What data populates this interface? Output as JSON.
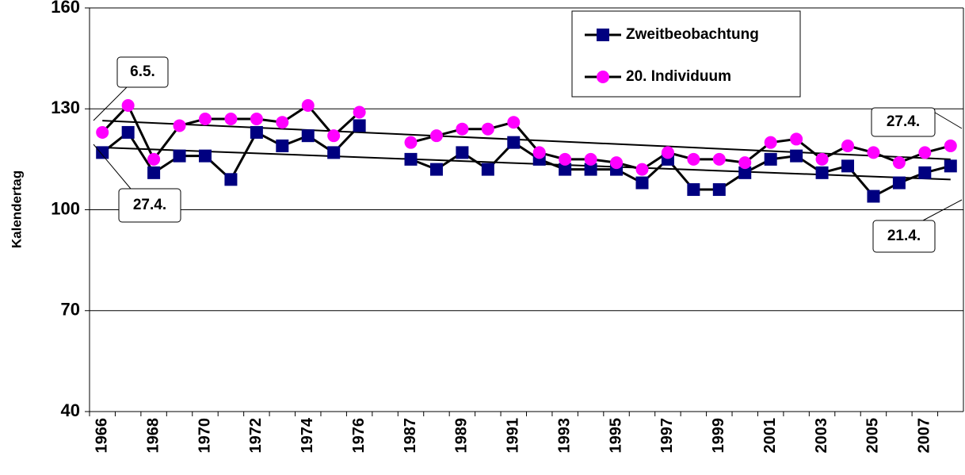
{
  "chart_data": {
    "type": "line",
    "y_label": "Kalendertag",
    "categories": [
      "1966",
      null,
      "1968",
      null,
      "1970",
      null,
      "1972",
      null,
      "1974",
      null,
      "1976",
      null,
      "1987",
      null,
      "1989",
      null,
      "1991",
      null,
      "1993",
      null,
      "1995",
      null,
      "1997",
      null,
      "1999",
      null,
      "2001",
      null,
      "2003",
      null,
      "2005",
      null,
      "2007",
      null
    ],
    "series": [
      {
        "name": "Zweitbeobachtung",
        "color": "#000080",
        "marker": "square",
        "values": [
          117,
          123,
          111,
          116,
          116,
          109,
          123,
          119,
          122,
          117,
          125,
          null,
          115,
          112,
          117,
          112,
          120,
          115,
          112,
          112,
          112,
          108,
          115,
          106,
          106,
          111,
          115,
          116,
          111,
          113,
          104,
          108,
          111,
          113
        ]
      },
      {
        "name": "20. Individuum",
        "color": "#ff00ff",
        "marker": "circle",
        "values": [
          123,
          131,
          115,
          125,
          127,
          127,
          127,
          126,
          131,
          122,
          129,
          null,
          120,
          122,
          124,
          124,
          126,
          117,
          115,
          115,
          114,
          112,
          117,
          115,
          115,
          114,
          120,
          121,
          115,
          119,
          117,
          114,
          117,
          119
        ]
      }
    ],
    "trendlines": [
      {
        "color": "#000000",
        "values": [
          118.5,
          109
        ]
      },
      {
        "color": "#000000",
        "values": [
          126.5,
          115
        ]
      }
    ],
    "annotations": [
      "6.5.",
      "27.4.",
      "27.4.",
      "21.4."
    ],
    "ylim": [
      40,
      160
    ],
    "yticks": [
      40,
      70,
      100,
      130,
      160
    ],
    "grid": true,
    "legend": "top-right"
  }
}
